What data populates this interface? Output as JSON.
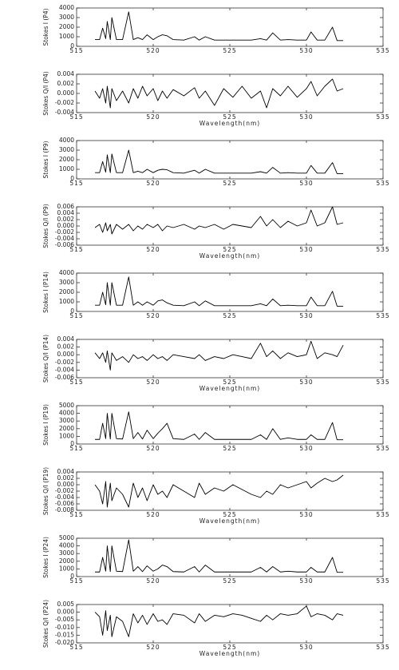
{
  "chart_data": [
    {
      "type": "line",
      "ylabel": "Stokes I (P4)",
      "xlim": [
        515,
        535
      ],
      "xticks": [
        515,
        520,
        525,
        530,
        535
      ],
      "ylim": [
        0,
        4000
      ],
      "yticks": [
        0,
        1000,
        2000,
        3000,
        4000
      ],
      "color": "#000000",
      "x": [
        516.2,
        516.5,
        516.7,
        516.9,
        517.0,
        517.2,
        517.3,
        517.6,
        518.0,
        518.4,
        518.7,
        519.0,
        519.3,
        519.6,
        520.0,
        520.3,
        520.6,
        520.9,
        521.3,
        522.0,
        522.7,
        523.0,
        523.4,
        524.0,
        524.6,
        525.2,
        525.8,
        526.4,
        527.0,
        527.4,
        527.8,
        528.3,
        528.8,
        529.4,
        530.0,
        530.3,
        530.7,
        531.2,
        531.7,
        532.0,
        532.4
      ],
      "values": [
        700,
        700,
        1900,
        800,
        2600,
        700,
        3000,
        700,
        700,
        3600,
        700,
        900,
        700,
        1200,
        700,
        1000,
        1200,
        1100,
        700,
        650,
        1000,
        650,
        1000,
        650,
        650,
        650,
        650,
        650,
        800,
        650,
        1400,
        650,
        700,
        650,
        650,
        1500,
        650,
        650,
        2000,
        600,
        600
      ]
    },
    {
      "type": "line",
      "ylabel": "Stokes Q/I (P4)",
      "xlabel": "Wavelength(nm)",
      "xlim": [
        515,
        535
      ],
      "xticks": [
        515,
        520,
        525,
        530,
        535
      ],
      "ylim": [
        -0.004,
        0.004
      ],
      "yticks": [
        -0.004,
        -0.002,
        {
          "value": 0,
          "label": "0.000"
        },
        0.002,
        0.004
      ],
      "color": "#000000",
      "x": [
        516.2,
        516.5,
        516.7,
        516.9,
        517.0,
        517.2,
        517.3,
        517.6,
        518.0,
        518.4,
        518.7,
        519.0,
        519.3,
        519.6,
        520.0,
        520.3,
        520.6,
        520.9,
        521.3,
        522.0,
        522.7,
        523.0,
        523.4,
        524.0,
        524.6,
        525.2,
        525.8,
        526.4,
        527.0,
        527.4,
        527.8,
        528.3,
        528.8,
        529.4,
        530.0,
        530.3,
        530.7,
        531.2,
        531.7,
        532.0,
        532.4
      ],
      "values": [
        0.0005,
        -0.001,
        0.001,
        -0.002,
        0.0015,
        -0.003,
        0.001,
        -0.0015,
        0.0005,
        -0.002,
        0.001,
        -0.001,
        0.0015,
        -0.0005,
        0.001,
        -0.0015,
        0.0005,
        -0.001,
        0.0008,
        -0.0005,
        0.0012,
        -0.001,
        0.0005,
        -0.0025,
        0.001,
        -0.0008,
        0.0015,
        -0.001,
        0.0005,
        -0.003,
        0.001,
        -0.0005,
        0.0015,
        -0.0008,
        0.001,
        0.0025,
        -0.0005,
        0.0015,
        0.003,
        0.0005,
        0.001
      ]
    },
    {
      "type": "line",
      "ylabel": "Stokes I (P9)",
      "xlim": [
        515,
        535
      ],
      "xticks": [
        515,
        520,
        525,
        530,
        535
      ],
      "ylim": [
        0,
        4000
      ],
      "yticks": [
        0,
        1000,
        2000,
        3000,
        4000
      ],
      "color": "#000000",
      "x": [
        516.2,
        516.5,
        516.7,
        516.9,
        517.0,
        517.2,
        517.3,
        517.6,
        518.0,
        518.4,
        518.7,
        519.0,
        519.3,
        519.6,
        520.0,
        520.3,
        520.6,
        520.9,
        521.3,
        522.0,
        522.7,
        523.0,
        523.4,
        524.0,
        524.6,
        525.2,
        525.8,
        526.4,
        527.0,
        527.4,
        527.8,
        528.3,
        528.8,
        529.4,
        530.0,
        530.3,
        530.7,
        531.2,
        531.7,
        532.0,
        532.4
      ],
      "values": [
        650,
        650,
        1800,
        700,
        2500,
        650,
        2600,
        650,
        650,
        3000,
        650,
        800,
        650,
        1000,
        650,
        900,
        1000,
        950,
        650,
        600,
        900,
        600,
        1000,
        600,
        600,
        600,
        600,
        600,
        750,
        600,
        1200,
        600,
        650,
        600,
        600,
        1400,
        600,
        600,
        1700,
        550,
        550
      ]
    },
    {
      "type": "line",
      "ylabel": "Stokes Q/I (P9)",
      "xlabel": "Wavelength(nm)",
      "xlim": [
        515,
        535
      ],
      "xticks": [
        515,
        520,
        525,
        530,
        535
      ],
      "ylim": [
        -0.006,
        0.006
      ],
      "yticks": [
        -0.006,
        -0.004,
        -0.002,
        {
          "value": 0,
          "label": "0.000"
        },
        0.002,
        0.004,
        0.006
      ],
      "color": "#000000",
      "x": [
        516.2,
        516.5,
        516.7,
        516.9,
        517.0,
        517.2,
        517.3,
        517.6,
        518.0,
        518.4,
        518.7,
        519.0,
        519.3,
        519.6,
        520.0,
        520.3,
        520.6,
        520.9,
        521.3,
        522.0,
        522.7,
        523.0,
        523.4,
        524.0,
        524.6,
        525.2,
        525.8,
        526.4,
        527.0,
        527.4,
        527.8,
        528.3,
        528.8,
        529.4,
        530.0,
        530.3,
        530.7,
        531.2,
        531.7,
        532.0,
        532.4
      ],
      "values": [
        -0.0005,
        0.0005,
        -0.002,
        0.001,
        -0.0015,
        0.0005,
        -0.0025,
        0.0005,
        -0.001,
        0.0005,
        -0.0015,
        0,
        -0.001,
        0.0005,
        -0.0005,
        0.0005,
        -0.0015,
        0,
        -0.0005,
        0.0005,
        -0.001,
        0,
        -0.0005,
        0.0005,
        -0.001,
        0.0005,
        0,
        -0.0005,
        0.003,
        0,
        0.002,
        -0.0005,
        0.0015,
        0,
        0.001,
        0.005,
        0,
        0.001,
        0.006,
        0.0005,
        0.001
      ]
    },
    {
      "type": "line",
      "ylabel": "Stokes I (P14)",
      "xlim": [
        515,
        535
      ],
      "xticks": [
        515,
        520,
        525,
        530,
        535
      ],
      "ylim": [
        0,
        4000
      ],
      "yticks": [
        0,
        1000,
        2000,
        3000,
        4000
      ],
      "color": "#000000",
      "x": [
        516.2,
        516.5,
        516.7,
        516.9,
        517.0,
        517.2,
        517.3,
        517.6,
        518.0,
        518.4,
        518.7,
        519.0,
        519.3,
        519.6,
        520.0,
        520.3,
        520.6,
        520.9,
        521.3,
        522.0,
        522.7,
        523.0,
        523.4,
        524.0,
        524.6,
        525.2,
        525.8,
        526.4,
        527.0,
        527.4,
        527.8,
        528.3,
        528.8,
        529.4,
        530.0,
        530.3,
        530.7,
        531.2,
        531.7,
        532.0,
        532.4
      ],
      "values": [
        650,
        650,
        2000,
        700,
        3000,
        650,
        3000,
        650,
        650,
        3600,
        650,
        1000,
        650,
        1000,
        650,
        1100,
        1200,
        900,
        650,
        600,
        1000,
        600,
        1100,
        600,
        600,
        600,
        600,
        600,
        800,
        600,
        1300,
        600,
        650,
        600,
        600,
        1500,
        600,
        600,
        2100,
        550,
        550
      ]
    },
    {
      "type": "line",
      "ylabel": "Stokes Q/I (P14)",
      "xlabel": "Wavelength(nm)",
      "xlim": [
        515,
        535
      ],
      "xticks": [
        515,
        520,
        525,
        530,
        535
      ],
      "ylim": [
        -0.006,
        0.004
      ],
      "yticks": [
        -0.006,
        -0.004,
        -0.002,
        {
          "value": 0,
          "label": "0.000"
        },
        0.002,
        0.004
      ],
      "color": "#000000",
      "x": [
        516.2,
        516.5,
        516.7,
        516.9,
        517.0,
        517.2,
        517.3,
        517.6,
        518.0,
        518.4,
        518.7,
        519.0,
        519.3,
        519.6,
        520.0,
        520.3,
        520.6,
        520.9,
        521.3,
        522.0,
        522.7,
        523.0,
        523.4,
        524.0,
        524.6,
        525.2,
        525.8,
        526.4,
        527.0,
        527.4,
        527.8,
        528.3,
        528.8,
        529.4,
        530.0,
        530.3,
        530.7,
        531.2,
        531.7,
        532.0,
        532.4
      ],
      "values": [
        0.0005,
        -0.001,
        0.0005,
        -0.002,
        0.001,
        -0.004,
        0.0005,
        -0.0015,
        -0.0005,
        -0.002,
        0,
        -0.001,
        -0.0005,
        -0.0015,
        0,
        -0.001,
        -0.0005,
        -0.0015,
        0,
        -0.0005,
        -0.001,
        0,
        -0.0015,
        -0.0005,
        -0.001,
        0,
        -0.0005,
        -0.001,
        0.003,
        -0.0005,
        0.001,
        -0.001,
        0.0005,
        -0.0005,
        0,
        0.0035,
        -0.001,
        0.0005,
        0,
        -0.0005,
        0.0025
      ]
    },
    {
      "type": "line",
      "ylabel": "Stokes I (P19)",
      "xlim": [
        515,
        535
      ],
      "xticks": [
        515,
        520,
        525,
        530,
        535
      ],
      "ylim": [
        0,
        5000
      ],
      "yticks": [
        0,
        1000,
        2000,
        3000,
        4000,
        5000
      ],
      "color": "#000000",
      "x": [
        516.2,
        516.5,
        516.7,
        516.9,
        517.0,
        517.2,
        517.3,
        517.6,
        518.0,
        518.4,
        518.7,
        519.0,
        519.3,
        519.6,
        520.0,
        520.3,
        520.6,
        520.9,
        521.3,
        522.0,
        522.7,
        523.0,
        523.4,
        524.0,
        524.6,
        525.2,
        525.8,
        526.4,
        527.0,
        527.4,
        527.8,
        528.3,
        528.8,
        529.4,
        530.0,
        530.3,
        530.7,
        531.2,
        531.7,
        532.0,
        532.4
      ],
      "values": [
        600,
        600,
        2700,
        700,
        4000,
        650,
        4000,
        700,
        650,
        4200,
        700,
        1500,
        650,
        1800,
        700,
        1400,
        2000,
        2700,
        700,
        600,
        1300,
        600,
        1500,
        600,
        600,
        600,
        600,
        600,
        1200,
        600,
        2000,
        600,
        800,
        600,
        600,
        1200,
        600,
        600,
        2800,
        550,
        550
      ]
    },
    {
      "type": "line",
      "ylabel": "Stokes Q/I (P19)",
      "xlabel": "Wavelength(nm)",
      "xlim": [
        515,
        535
      ],
      "xticks": [
        515,
        520,
        525,
        530,
        535
      ],
      "ylim": [
        -0.008,
        0.004
      ],
      "yticks": [
        -0.008,
        -0.006,
        -0.004,
        -0.002,
        {
          "value": 0,
          "label": "0.000"
        },
        0.002,
        0.004
      ],
      "color": "#000000",
      "x": [
        516.2,
        516.5,
        516.7,
        516.9,
        517.0,
        517.2,
        517.3,
        517.6,
        518.0,
        518.4,
        518.7,
        519.0,
        519.3,
        519.6,
        520.0,
        520.3,
        520.6,
        520.9,
        521.3,
        522.0,
        522.7,
        523.0,
        523.4,
        524.0,
        524.6,
        525.2,
        525.8,
        526.4,
        527.0,
        527.4,
        527.8,
        528.3,
        528.8,
        529.4,
        530.0,
        530.3,
        530.7,
        531.2,
        531.7,
        532.0,
        532.4
      ],
      "values": [
        0,
        -0.002,
        -0.006,
        0.001,
        -0.007,
        0.0005,
        -0.005,
        -0.001,
        -0.003,
        -0.007,
        0.0005,
        -0.004,
        -0.001,
        -0.005,
        0,
        -0.003,
        -0.002,
        -0.004,
        0,
        -0.002,
        -0.004,
        0.0005,
        -0.003,
        -0.001,
        -0.002,
        0,
        -0.0015,
        -0.003,
        -0.004,
        -0.002,
        -0.003,
        0,
        -0.001,
        0,
        0.001,
        -0.001,
        0.0005,
        0.002,
        0.001,
        0.0015,
        0.003
      ]
    },
    {
      "type": "line",
      "ylabel": "Stokes I (P24)",
      "xlim": [
        515,
        535
      ],
      "xticks": [
        515,
        520,
        525,
        530,
        535
      ],
      "ylim": [
        0,
        5000
      ],
      "yticks": [
        0,
        1000,
        2000,
        3000,
        4000,
        5000
      ],
      "color": "#000000",
      "x": [
        516.2,
        516.5,
        516.7,
        516.9,
        517.0,
        517.2,
        517.3,
        517.6,
        518.0,
        518.4,
        518.7,
        519.0,
        519.3,
        519.6,
        520.0,
        520.3,
        520.6,
        520.9,
        521.3,
        522.0,
        522.7,
        523.0,
        523.4,
        524.0,
        524.6,
        525.2,
        525.8,
        526.4,
        527.0,
        527.4,
        527.8,
        528.3,
        528.8,
        529.4,
        530.0,
        530.3,
        530.7,
        531.2,
        531.7,
        532.0,
        532.4
      ],
      "values": [
        600,
        600,
        2500,
        700,
        4000,
        650,
        4000,
        700,
        650,
        4800,
        700,
        1300,
        650,
        1400,
        700,
        1000,
        1500,
        1300,
        650,
        600,
        1300,
        600,
        1500,
        600,
        600,
        600,
        600,
        600,
        1200,
        600,
        1300,
        600,
        700,
        600,
        600,
        1200,
        600,
        600,
        2500,
        550,
        550
      ]
    },
    {
      "type": "line",
      "ylabel": "Stokes Q/I (P24)",
      "xlabel": "Wavelength(nm)",
      "xlim": [
        515,
        535
      ],
      "xticks": [
        515,
        520,
        525,
        530,
        535
      ],
      "ylim": [
        -0.02,
        0.005
      ],
      "yticks": [
        {
          "value": -0.02,
          "label": "-0.020"
        },
        -0.015,
        {
          "value": -0.01,
          "label": "-0.010"
        },
        -0.005,
        {
          "value": 0,
          "label": "0.000"
        },
        0.005
      ],
      "color": "#000000",
      "x": [
        516.2,
        516.5,
        516.7,
        516.9,
        517.0,
        517.2,
        517.3,
        517.6,
        518.0,
        518.4,
        518.7,
        519.0,
        519.3,
        519.6,
        520.0,
        520.3,
        520.6,
        520.9,
        521.3,
        522.0,
        522.7,
        523.0,
        523.4,
        524.0,
        524.6,
        525.2,
        525.8,
        526.4,
        527.0,
        527.4,
        527.8,
        528.3,
        528.8,
        529.4,
        530.0,
        530.3,
        530.7,
        531.2,
        531.7,
        532.0,
        532.4
      ],
      "values": [
        0,
        -0.003,
        -0.015,
        0.001,
        -0.012,
        -0.002,
        -0.016,
        -0.003,
        -0.006,
        -0.016,
        -0.001,
        -0.007,
        -0.002,
        -0.008,
        -0.001,
        -0.006,
        -0.005,
        -0.008,
        -0.001,
        -0.002,
        -0.007,
        -0.001,
        -0.006,
        -0.002,
        -0.003,
        -0.001,
        -0.002,
        -0.004,
        -0.006,
        -0.002,
        -0.005,
        -0.001,
        -0.002,
        -0.001,
        0.004,
        -0.003,
        -0.001,
        -0.002,
        -0.005,
        -0.001,
        -0.002
      ]
    }
  ]
}
